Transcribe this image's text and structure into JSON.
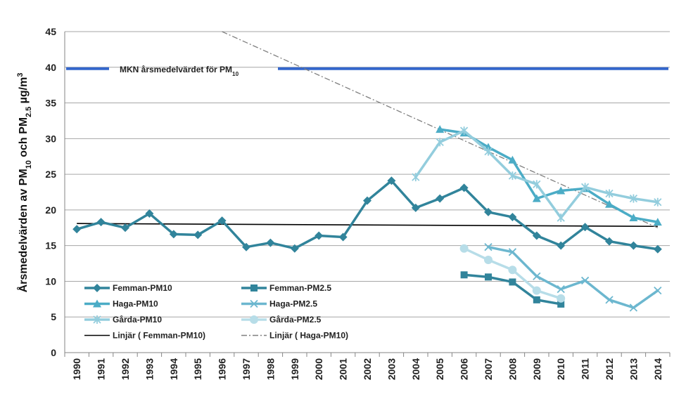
{
  "chart_data": {
    "type": "line",
    "ylabel_parts": [
      "Årsmedelvärden av PM",
      "10",
      " och PM",
      "2.5",
      "  µg/m",
      "3"
    ],
    "ylim": [
      0,
      45
    ],
    "yticks": [
      0,
      5,
      10,
      15,
      20,
      25,
      30,
      35,
      40,
      45
    ],
    "grid": "horizontal",
    "categories": [
      "1990",
      "1991",
      "1992",
      "1993",
      "1994",
      "1995",
      "1996",
      "1997",
      "1998",
      "1999",
      "2000",
      "2001",
      "2002",
      "2003",
      "2004",
      "2005",
      "2006",
      "2007",
      "2008",
      "2009",
      "2010",
      "2011",
      "2012",
      "2013",
      "2014"
    ],
    "reference_line": {
      "value": 39.8,
      "color": "#3366cc",
      "label_parts": [
        "MKN årsmedelvärdet för PM",
        "10"
      ]
    },
    "series": [
      {
        "name": "Femman-PM10",
        "color": "#31849b",
        "marker": "diamond",
        "dash": "",
        "values": [
          17.3,
          18.3,
          17.5,
          19.5,
          16.6,
          16.5,
          18.5,
          14.8,
          15.4,
          14.6,
          16.4,
          16.2,
          21.3,
          24.1,
          20.3,
          21.6,
          23.1,
          19.7,
          19.0,
          16.4,
          15.0,
          17.6,
          15.6,
          15.0,
          14.5
        ]
      },
      {
        "name": "Femman-PM2.5",
        "color": "#31849b",
        "marker": "square",
        "dash": "",
        "values": [
          null,
          null,
          null,
          null,
          null,
          null,
          null,
          null,
          null,
          null,
          null,
          null,
          null,
          null,
          null,
          null,
          10.9,
          10.6,
          9.9,
          7.4,
          6.8,
          null,
          null,
          null,
          null
        ]
      },
      {
        "name": "Haga-PM10",
        "color": "#4bacc6",
        "marker": "triangle",
        "dash": "",
        "values": [
          null,
          null,
          null,
          null,
          null,
          null,
          null,
          null,
          null,
          null,
          null,
          null,
          null,
          null,
          null,
          31.3,
          30.8,
          28.8,
          27.0,
          21.6,
          22.7,
          23.0,
          20.8,
          18.9,
          18.3
        ]
      },
      {
        "name": "Haga-PM2.5",
        "color": "#6cb7cf",
        "marker": "x",
        "dash": "",
        "values": [
          null,
          null,
          null,
          null,
          null,
          null,
          null,
          null,
          null,
          null,
          null,
          null,
          null,
          null,
          null,
          null,
          null,
          14.8,
          14.1,
          10.7,
          8.9,
          10.1,
          7.4,
          6.3,
          8.7
        ]
      },
      {
        "name": "Gårda-PM10",
        "color": "#93cddd",
        "marker": "star",
        "dash": "",
        "values": [
          null,
          null,
          null,
          null,
          null,
          null,
          null,
          null,
          null,
          null,
          null,
          null,
          null,
          null,
          24.6,
          29.5,
          31.1,
          28.2,
          24.8,
          23.6,
          18.9,
          23.2,
          22.3,
          21.6,
          21.1
        ]
      },
      {
        "name": "Gårda-PM2.5",
        "color": "#b7dde8",
        "marker": "circle",
        "dash": "",
        "values": [
          null,
          null,
          null,
          null,
          null,
          null,
          null,
          null,
          null,
          null,
          null,
          null,
          null,
          null,
          null,
          null,
          14.6,
          13.0,
          11.6,
          8.7,
          7.6,
          null,
          null,
          null,
          null
        ]
      }
    ],
    "trendlines": [
      {
        "name": "Linjär ( Femman-PM10)",
        "color": "#000000",
        "dash": "",
        "x": [
          "1990",
          "2014"
        ],
        "y": [
          18.1,
          17.7
        ]
      },
      {
        "name": "Linjär ( Haga-PM10)",
        "color": "#7f7f7f",
        "dash": "8,3,2,3",
        "x": [
          "1996",
          "2014"
        ],
        "y": [
          45.0,
          17.5
        ]
      }
    ],
    "legend_order": [
      "Femman-PM10",
      "Femman-PM2.5",
      "Haga-PM10",
      "Haga-PM2.5",
      "Gårda-PM10",
      "Gårda-PM2.5",
      "Linjär ( Femman-PM10)",
      "Linjär ( Haga-PM10)"
    ],
    "legend_position": "bottom-left, two columns, inside plot"
  }
}
